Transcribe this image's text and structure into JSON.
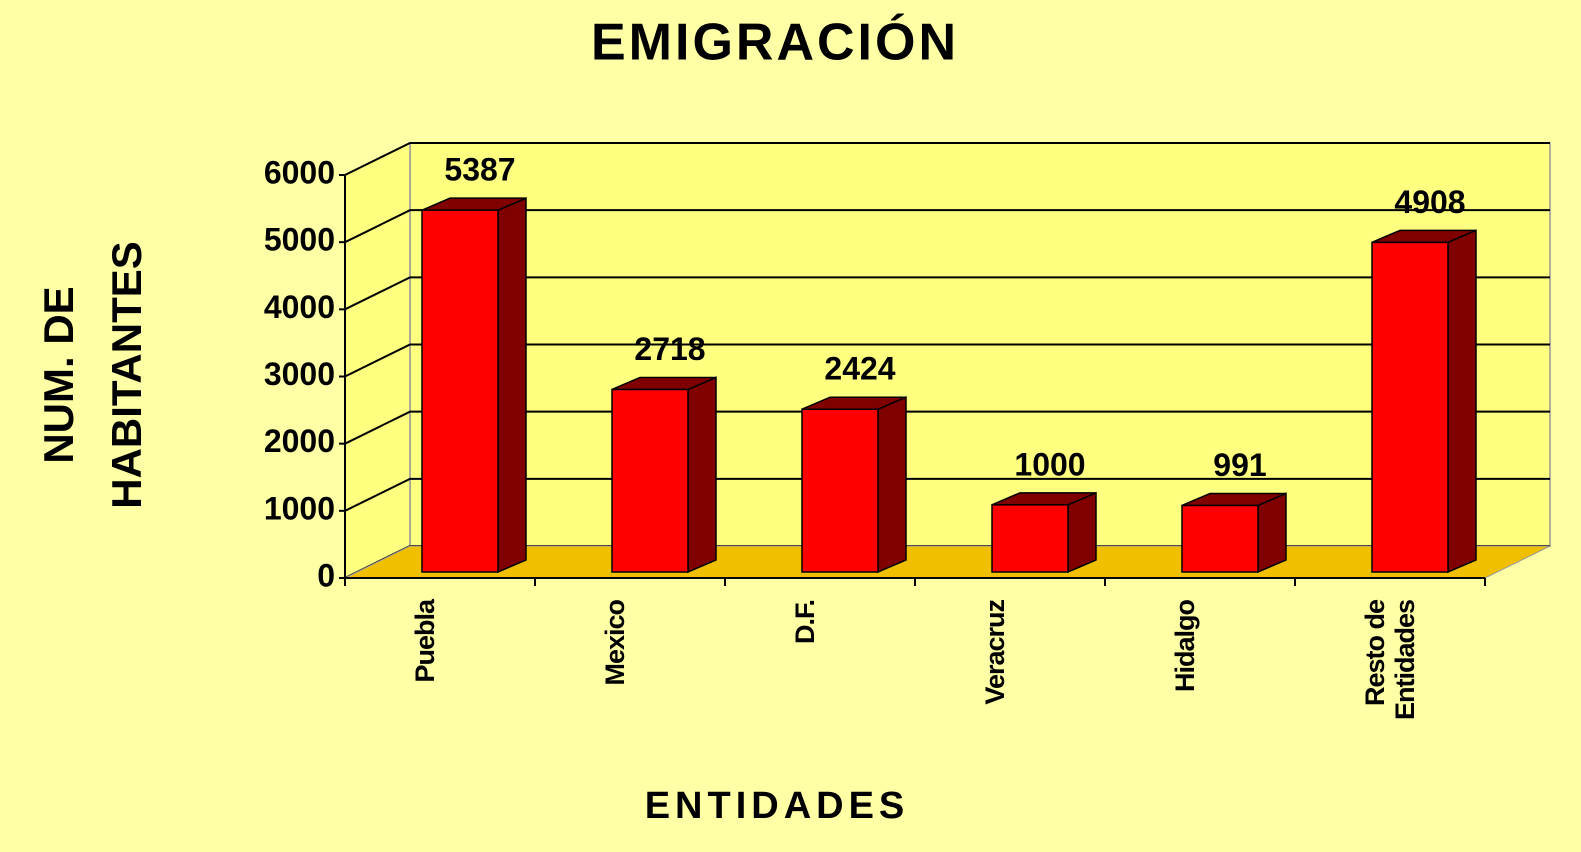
{
  "chart_data": {
    "type": "bar3d",
    "title": "EMIGRACIÓN",
    "ylabel": [
      "NUM. DE",
      "HABITANTES"
    ],
    "xlabel": "ENTIDADES",
    "categories": [
      "Puebla",
      "Mexico",
      "D.F.",
      "Veracruz",
      "Hidalgo",
      "Resto de Entidades"
    ],
    "values": [
      5387,
      2718,
      2424,
      1000,
      991,
      4908
    ],
    "color": "#ff0000",
    "side_color": "#800000",
    "floor_color": "#f0c000",
    "ylim": [
      0,
      6000
    ],
    "yticks": [
      0,
      1000,
      2000,
      3000,
      4000,
      5000,
      6000
    ],
    "grid": true
  }
}
